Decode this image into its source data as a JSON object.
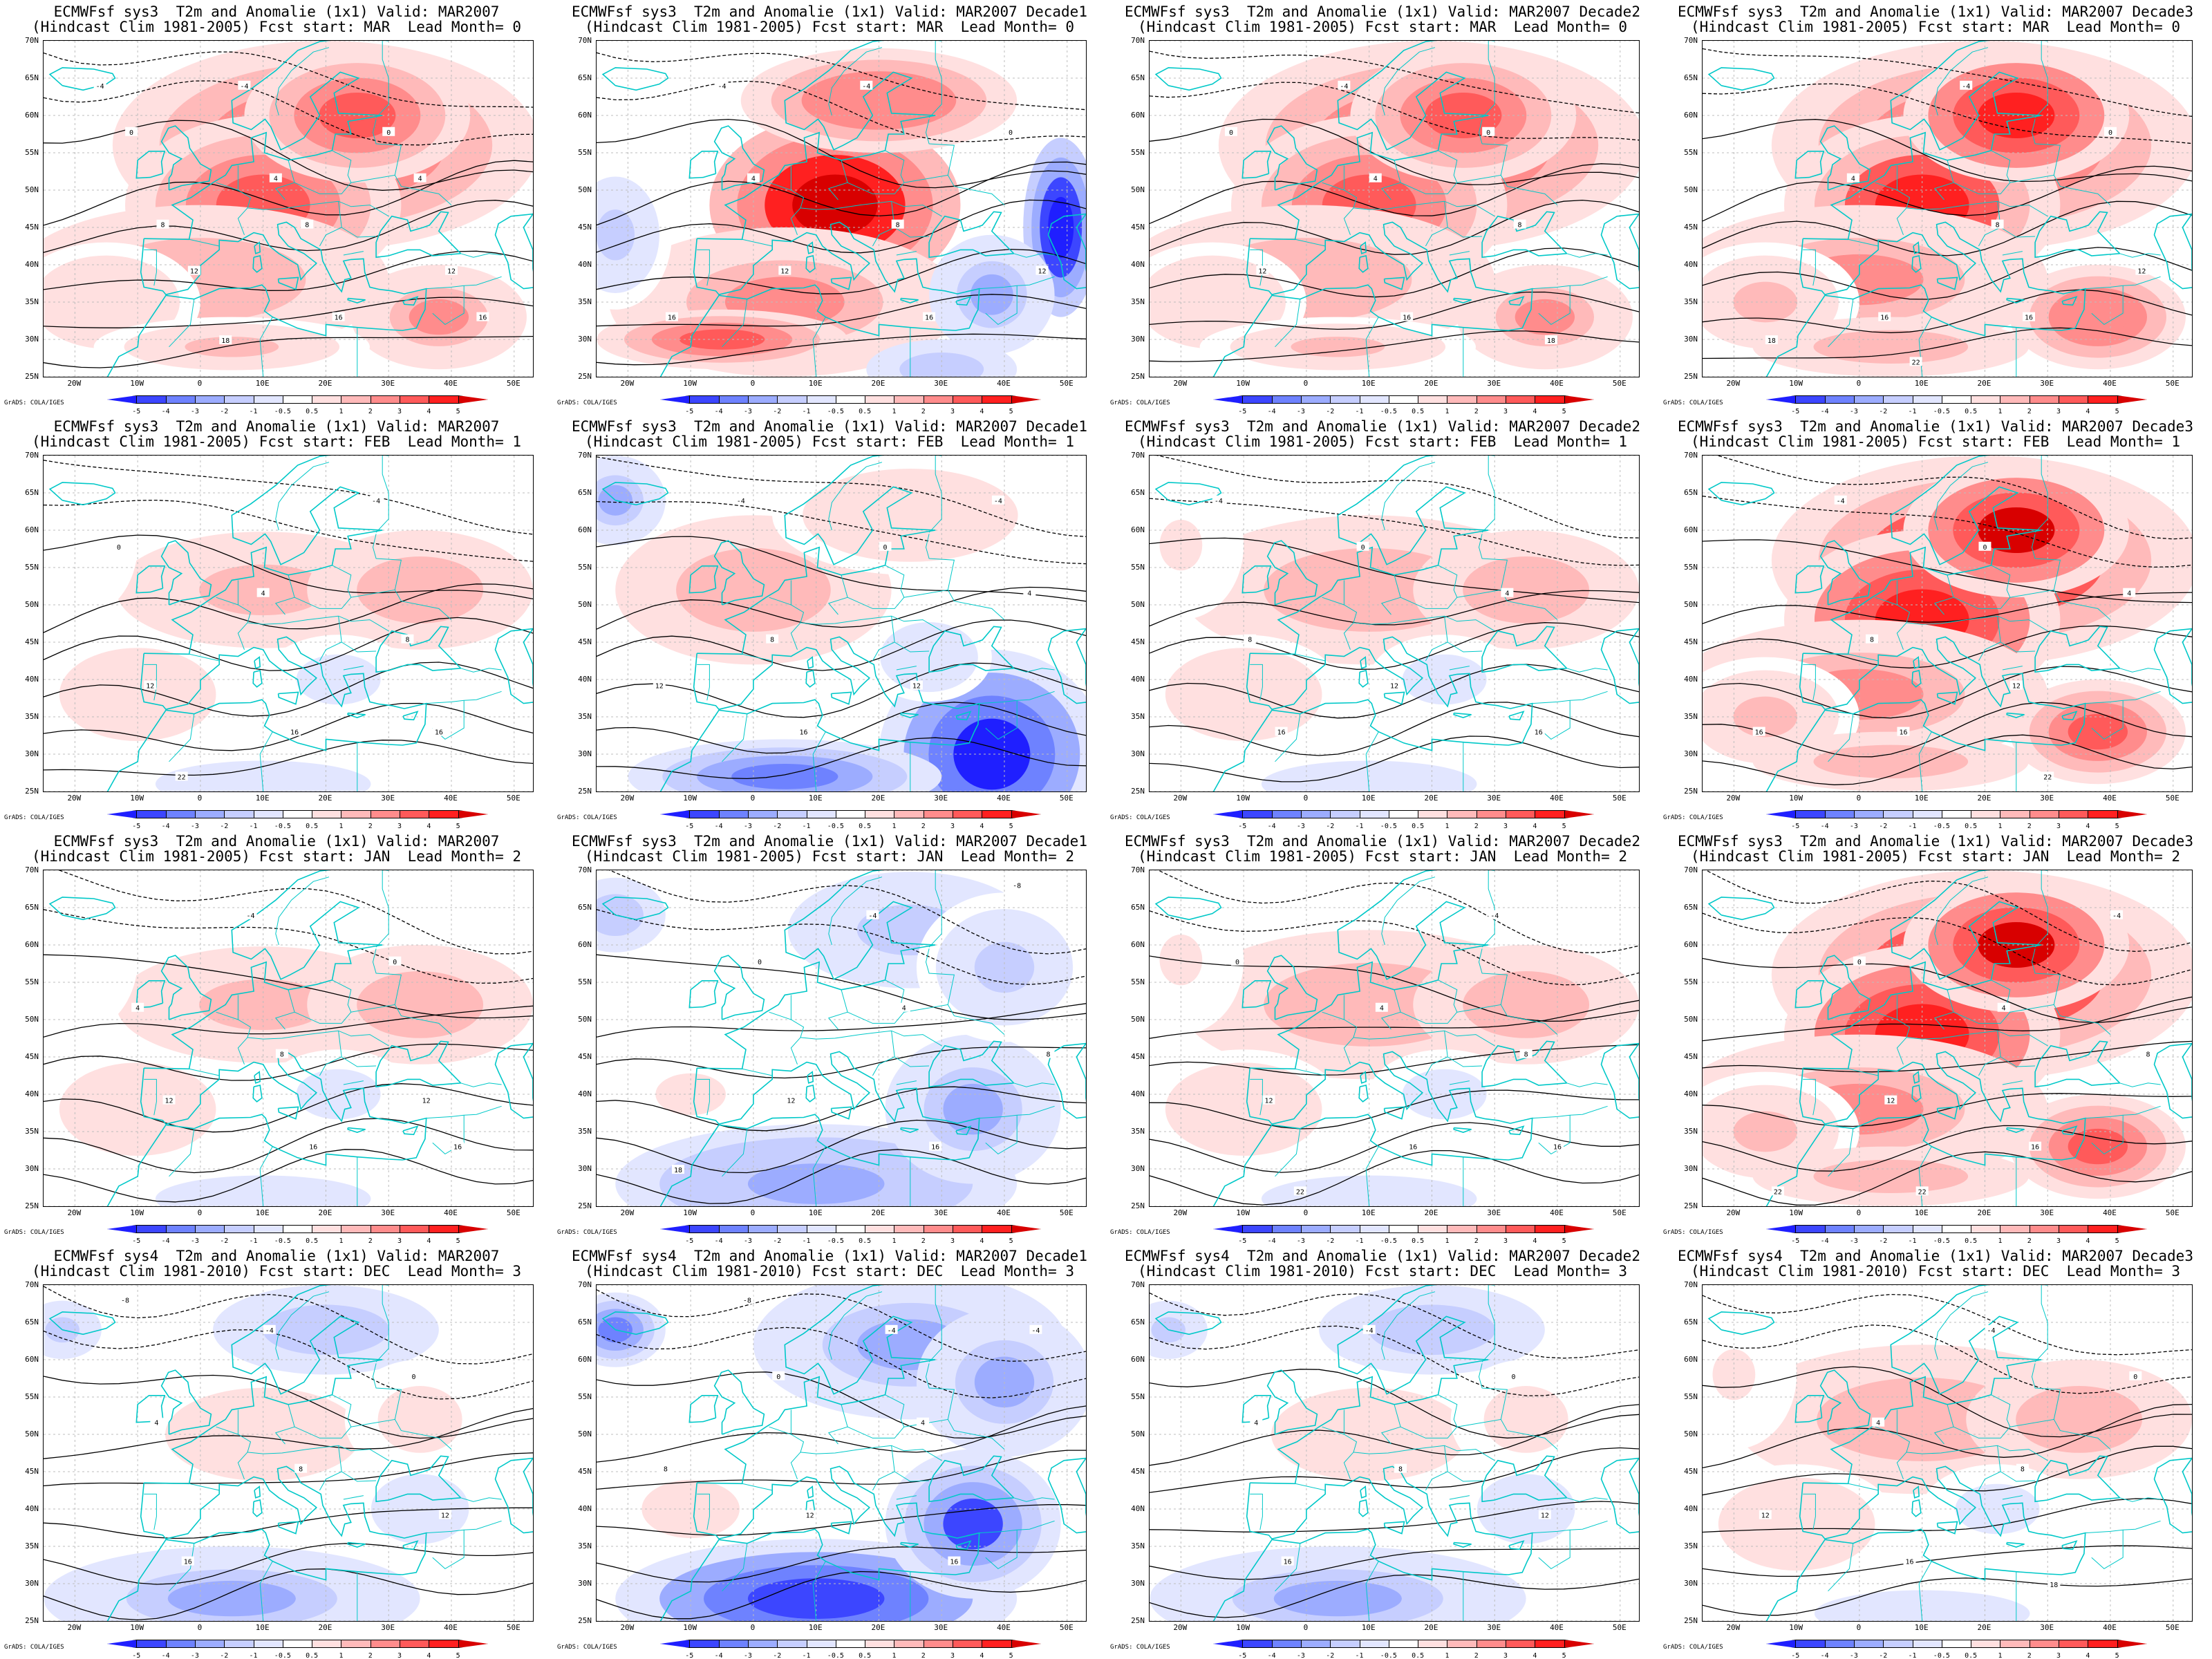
{
  "figure": {
    "panels": [
      {
        "title": "ECMWFsf sys3  T2m and Anomalie (1x1) Valid: MAR2007",
        "subtitle": "(Hindcast Clim 1981-2005) Fcst start: MAR  Lead Month= 0",
        "anomaly": "warm",
        "intensity": 0.75,
        "contour_labels": [
          "-4",
          "-4",
          "0",
          "0",
          "4",
          "4",
          "8",
          "8",
          "12",
          "12",
          "16",
          "16",
          "18"
        ]
      },
      {
        "title": "ECMWFsf sys3  T2m and Anomalie (1x1) Valid: MAR2007 Decade1",
        "subtitle": "(Hindcast Clim 1981-2005) Fcst start: MAR  Lead Month= 0",
        "anomaly": "warm_east_cold",
        "intensity": 0.9,
        "contour_labels": [
          "-4",
          "-4",
          "0",
          "4",
          "8",
          "12",
          "12",
          "16",
          "16"
        ]
      },
      {
        "title": "ECMWFsf sys3  T2m and Anomalie (1x1) Valid: MAR2007 Decade2",
        "subtitle": "(Hindcast Clim 1981-2005) Fcst start: MAR  Lead Month= 0",
        "anomaly": "warm",
        "intensity": 0.75,
        "contour_labels": [
          "-4",
          "0",
          "0",
          "4",
          "8",
          "12",
          "16",
          "18"
        ]
      },
      {
        "title": "ECMWFsf sys3  T2m and Anomalie (1x1) Valid: MAR2007 Decade3",
        "subtitle": "(Hindcast Clim 1981-2005) Fcst start: MAR  Lead Month= 0",
        "anomaly": "warm",
        "intensity": 0.9,
        "contour_labels": [
          "-4",
          "0",
          "4",
          "8",
          "12",
          "16",
          "16",
          "18",
          "22"
        ]
      },
      {
        "title": "ECMWFsf sys3  T2m and Anomalie (1x1) Valid: MAR2007",
        "subtitle": "(Hindcast Clim 1981-2005) Fcst start: FEB  Lead Month= 1",
        "anomaly": "warm_mild",
        "intensity": 0.55,
        "contour_labels": [
          "-4",
          "0",
          "4",
          "8",
          "12",
          "16",
          "16",
          "22"
        ]
      },
      {
        "title": "ECMWFsf sys3  T2m and Anomalie (1x1) Valid: MAR2007 Decade1",
        "subtitle": "(Hindcast Clim 1981-2005) Fcst start: FEB  Lead Month= 1",
        "anomaly": "cold_south",
        "intensity": 0.8,
        "contour_labels": [
          "-4",
          "-4",
          "0",
          "4",
          "8",
          "12",
          "12",
          "16"
        ]
      },
      {
        "title": "ECMWFsf sys3  T2m and Anomalie (1x1) Valid: MAR2007 Decade2",
        "subtitle": "(Hindcast Clim 1981-2005) Fcst start: FEB  Lead Month= 1",
        "anomaly": "warm_mild",
        "intensity": 0.6,
        "contour_labels": [
          "-4",
          "0",
          "4",
          "8",
          "12",
          "16",
          "16"
        ]
      },
      {
        "title": "ECMWFsf sys3  T2m and Anomalie (1x1) Valid: MAR2007 Decade3",
        "subtitle": "(Hindcast Clim 1981-2005) Fcst start: FEB  Lead Month= 1",
        "anomaly": "warm",
        "intensity": 0.95,
        "contour_labels": [
          "-4",
          "0",
          "4",
          "8",
          "12",
          "16",
          "16",
          "22"
        ]
      },
      {
        "title": "ECMWFsf sys3  T2m and Anomalie (1x1) Valid: MAR2007",
        "subtitle": "(Hindcast Clim 1981-2005) Fcst start: JAN  Lead Month= 2",
        "anomaly": "warm_mild",
        "intensity": 0.55,
        "contour_labels": [
          "-4",
          "0",
          "4",
          "8",
          "12",
          "12",
          "16",
          "16"
        ]
      },
      {
        "title": "ECMWFsf sys3  T2m and Anomalie (1x1) Valid: MAR2007 Decade1",
        "subtitle": "(Hindcast Clim 1981-2005) Fcst start: JAN  Lead Month= 2",
        "anomaly": "cold",
        "intensity": 0.6,
        "contour_labels": [
          "-4",
          "-8",
          "0",
          "4",
          "8",
          "12",
          "16",
          "18"
        ]
      },
      {
        "title": "ECMWFsf sys3  T2m and Anomalie (1x1) Valid: MAR2007 Decade2",
        "subtitle": "(Hindcast Clim 1981-2005) Fcst start: JAN  Lead Month= 2",
        "anomaly": "warm_mild",
        "intensity": 0.6,
        "contour_labels": [
          "-4",
          "0",
          "4",
          "8",
          "12",
          "16",
          "16",
          "22"
        ]
      },
      {
        "title": "ECMWFsf sys3  T2m and Anomalie (1x1) Valid: MAR2007 Decade3",
        "subtitle": "(Hindcast Clim 1981-2005) Fcst start: JAN  Lead Month= 2",
        "anomaly": "warm",
        "intensity": 0.95,
        "contour_labels": [
          "-4",
          "0",
          "4",
          "8",
          "12",
          "16",
          "22",
          "22"
        ]
      },
      {
        "title": "ECMWFsf sys4  T2m and Anomalie (1x1) Valid: MAR2007",
        "subtitle": "(Hindcast Clim 1981-2010) Fcst start: DEC  Lead Month= 3",
        "anomaly": "cold_mild",
        "intensity": 0.55,
        "contour_labels": [
          "-8",
          "-4",
          "0",
          "4",
          "8",
          "12",
          "16"
        ]
      },
      {
        "title": "ECMWFsf sys4  T2m and Anomalie (1x1) Valid: MAR2007 Decade1",
        "subtitle": "(Hindcast Clim 1981-2010) Fcst start: DEC  Lead Month= 3",
        "anomaly": "cold",
        "intensity": 1.0,
        "contour_labels": [
          "-8",
          "-4",
          "-4",
          "0",
          "4",
          "8",
          "12",
          "16"
        ]
      },
      {
        "title": "ECMWFsf sys4  T2m and Anomalie (1x1) Valid: MAR2007 Decade2",
        "subtitle": "(Hindcast Clim 1981-2010) Fcst start: DEC  Lead Month= 3",
        "anomaly": "cold_mild",
        "intensity": 0.55,
        "contour_labels": [
          "-4",
          "0",
          "4",
          "8",
          "12",
          "16"
        ]
      },
      {
        "title": "ECMWFsf sys4  T2m and Anomalie (1x1) Valid: MAR2007 Decade3",
        "subtitle": "(Hindcast Clim 1981-2010) Fcst start: DEC  Lead Month= 3",
        "anomaly": "warm_mild",
        "intensity": 0.6,
        "contour_labels": [
          "-4",
          "0",
          "4",
          "8",
          "12",
          "16",
          "18"
        ]
      }
    ],
    "lat_labels": [
      "70N",
      "65N",
      "60N",
      "55N",
      "50N",
      "45N",
      "40N",
      "35N",
      "30N",
      "25N"
    ],
    "lon_labels": [
      "20W",
      "10W",
      "0",
      "10E",
      "20E",
      "30E",
      "40E",
      "50E"
    ],
    "colorbar": {
      "ticks": [
        "-5",
        "-4",
        "-3",
        "-2",
        "-1",
        "-0.5",
        "0.5",
        "1",
        "2",
        "3",
        "4",
        "5"
      ],
      "colors": [
        "#1f1fff",
        "#3c46ff",
        "#6e82ff",
        "#9cacff",
        "#c6ceff",
        "#e2e6ff",
        "#ffffff",
        "#ffe0e0",
        "#ffbaba",
        "#ff8c8c",
        "#ff5a5a",
        "#ff2020",
        "#d80000"
      ],
      "credit": "GrADS: COLA/IGES"
    },
    "colors": {
      "contour": "#000000",
      "coastline": "#00c8c8",
      "gridline": "#bdbdbd"
    }
  }
}
